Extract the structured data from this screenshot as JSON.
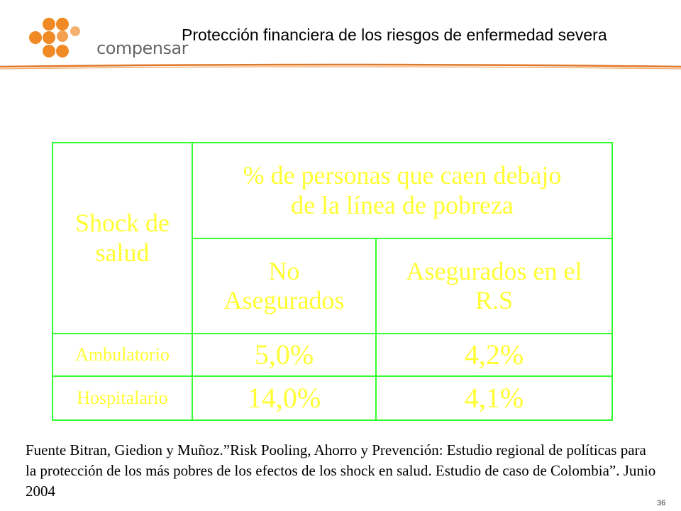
{
  "header": {
    "logo_text": "compensar",
    "title": "Protección financiera de los riesgos de enfermedad severa"
  },
  "table": {
    "row_header": [
      "Shock de",
      "salud"
    ],
    "main_header": [
      "% de personas que caen debajo",
      "de la línea de pobreza"
    ],
    "col_headers": [
      [
        "No",
        "Asegurados"
      ],
      [
        "Asegurados en el",
        "R.S"
      ]
    ],
    "rows": [
      {
        "label": "Ambulatorio",
        "values": [
          "5,0%",
          "4,2%"
        ]
      },
      {
        "label": "Hospitalario",
        "values": [
          "14,0%",
          "4,1%"
        ]
      }
    ],
    "colors": {
      "border": "#33ff33",
      "text": "#ffff33"
    }
  },
  "source_note": "Fuente Bitran, Giedion y Muñoz.”Risk Pooling, Ahorro y Prevención: Estudio regional de políticas para la protección de los más pobres de los efectos de los shock en salud. Estudio de caso de Colombia”. Junio 2004",
  "page_number": "36",
  "colors": {
    "logo_orange": "#f08a24",
    "rule_orange": "#e0782a"
  }
}
